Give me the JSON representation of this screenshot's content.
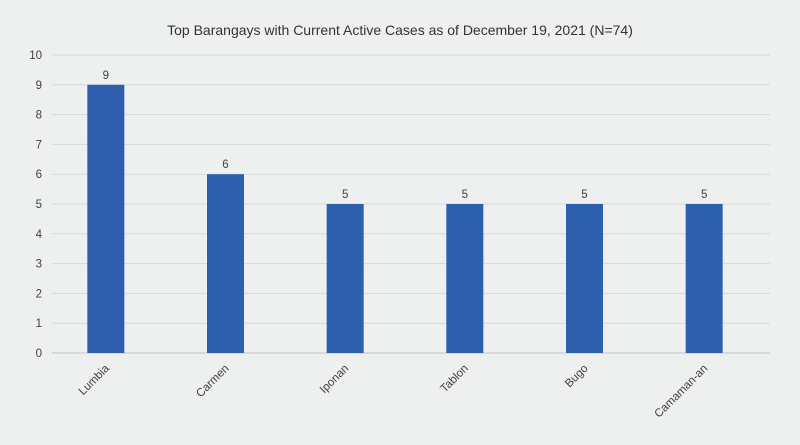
{
  "chart_data": {
    "type": "bar",
    "title": "Top Barangays with Current Active Cases as of December 19, 2021 (N=74)",
    "xlabel": "",
    "ylabel": "",
    "categories": [
      "Lumbia",
      "Carmen",
      "Iponan",
      "Tablon",
      "Bugo",
      "Camaman-an"
    ],
    "values": [
      9,
      6,
      5,
      5,
      5,
      5
    ],
    "data_labels": [
      "9",
      "6",
      "5",
      "5",
      "5",
      "5"
    ],
    "ylim": [
      0,
      10
    ],
    "yticks": [
      0,
      1,
      2,
      3,
      4,
      5,
      6,
      7,
      8,
      9,
      10
    ],
    "grid": true,
    "legend": "none",
    "colors": {
      "bar": "#2e5fae",
      "grid": "#d6d9dc",
      "axis": "#bfc3c6"
    }
  }
}
